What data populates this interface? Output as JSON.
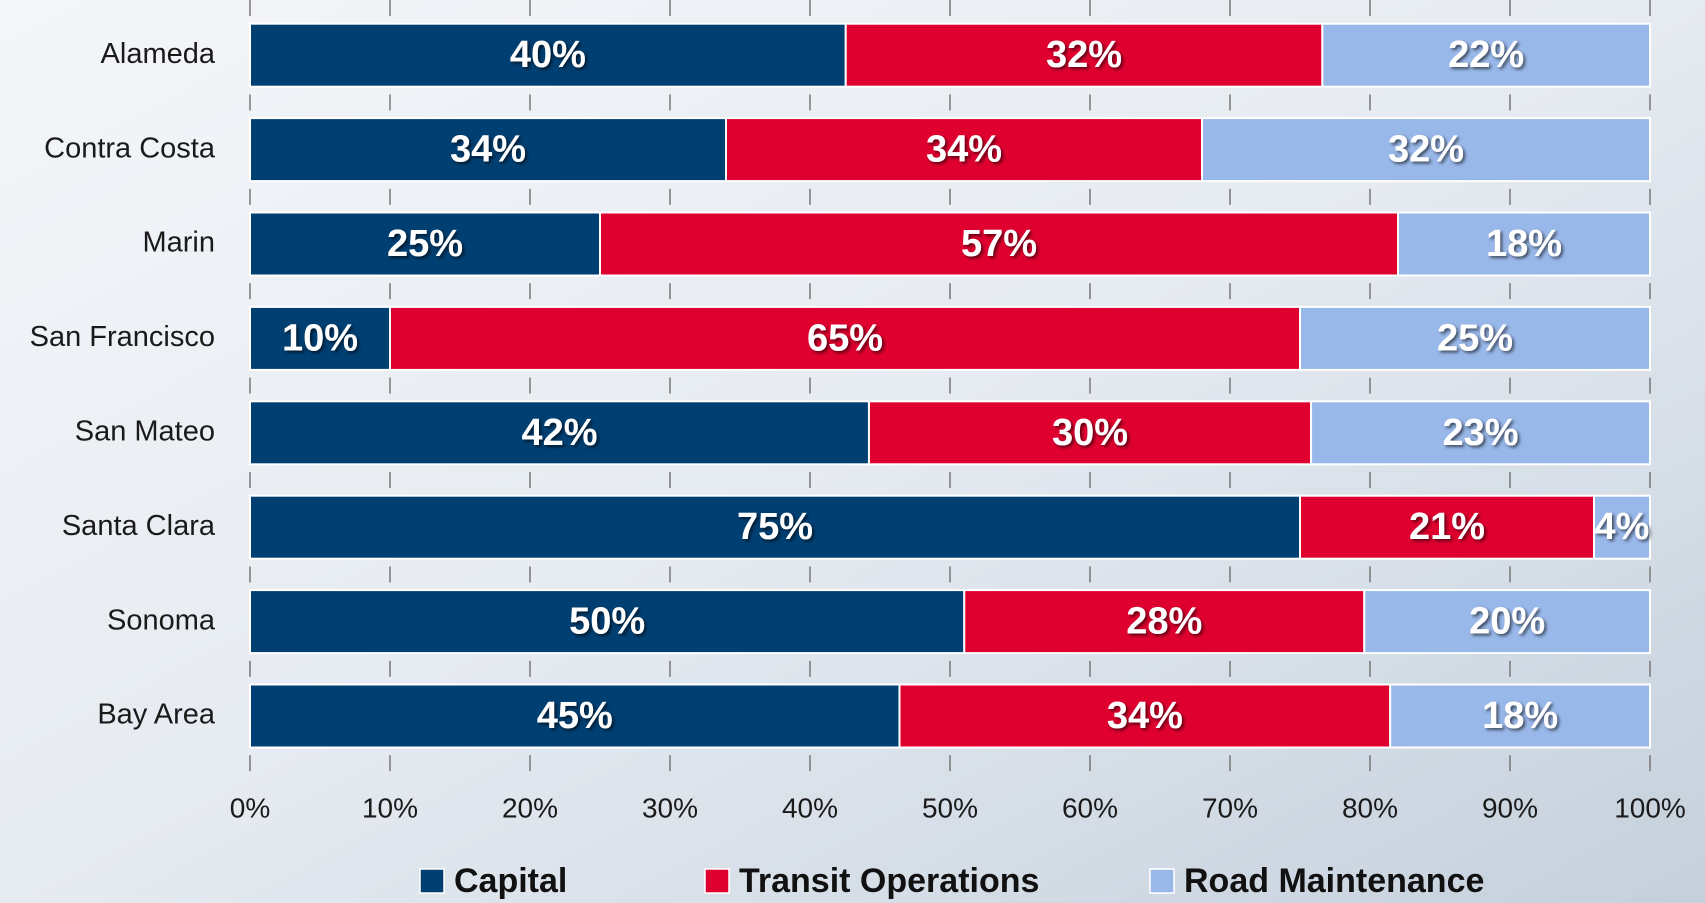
{
  "chart_data": {
    "type": "bar",
    "orientation": "horizontal",
    "stacking": "percent",
    "categories": [
      "Alameda",
      "Contra Costa",
      "Marin",
      "San Francisco",
      "San Mateo",
      "Santa Clara",
      "Sonoma",
      "Bay Area"
    ],
    "series": [
      {
        "name": "Capital",
        "color": "#003f72",
        "values": [
          40,
          34,
          25,
          10,
          42,
          75,
          50,
          45
        ],
        "value_labels": [
          "40%",
          "34%",
          "25%",
          "10%",
          "42%",
          "75%",
          "50%",
          "45%"
        ]
      },
      {
        "name": "Transit Operations",
        "color": "#e0002f",
        "values": [
          32,
          34,
          57,
          65,
          30,
          21,
          28,
          34
        ],
        "value_labels": [
          "32%",
          "34%",
          "57%",
          "65%",
          "30%",
          "21%",
          "28%",
          "34%"
        ]
      },
      {
        "name": "Road Maintenance",
        "color": "#99b8ea",
        "values": [
          22,
          32,
          18,
          25,
          23,
          4,
          20,
          18
        ],
        "value_labels": [
          "22%",
          "32%",
          "18%",
          "25%",
          "23%",
          "4%",
          "20%",
          "18%"
        ]
      }
    ],
    "xlim": [
      0,
      100
    ],
    "xticks": [
      {
        "value": 0,
        "label": "0%"
      },
      {
        "value": 10,
        "label": "10%"
      },
      {
        "value": 20,
        "label": "20%"
      },
      {
        "value": 30,
        "label": "30%"
      },
      {
        "value": 40,
        "label": "40%"
      },
      {
        "value": 50,
        "label": "50%"
      },
      {
        "value": 60,
        "label": "60%"
      },
      {
        "value": 70,
        "label": "70%"
      },
      {
        "value": 80,
        "label": "80%"
      },
      {
        "value": 90,
        "label": "90%"
      },
      {
        "value": 100,
        "label": "100%"
      }
    ],
    "legend": "bottom"
  }
}
